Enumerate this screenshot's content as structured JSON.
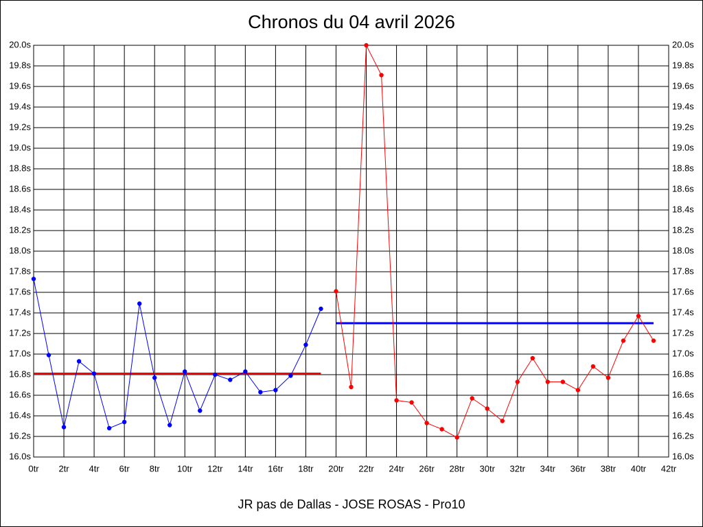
{
  "chart_data": {
    "type": "line",
    "title": "Chronos du 04 avril 2026",
    "x_label": "JR pas de Dallas - JOSE ROSAS - Pro10",
    "xlim": [
      0,
      42
    ],
    "ylim": [
      16.0,
      20.0
    ],
    "grid": true,
    "xticks": [
      {
        "value": 0,
        "label": "0tr"
      },
      {
        "value": 2,
        "label": "2tr"
      },
      {
        "value": 4,
        "label": "4tr"
      },
      {
        "value": 6,
        "label": "6tr"
      },
      {
        "value": 8,
        "label": "8tr"
      },
      {
        "value": 10,
        "label": "10tr"
      },
      {
        "value": 12,
        "label": "12tr"
      },
      {
        "value": 14,
        "label": "14tr"
      },
      {
        "value": 16,
        "label": "16tr"
      },
      {
        "value": 18,
        "label": "18tr"
      },
      {
        "value": 20,
        "label": "20tr"
      },
      {
        "value": 22,
        "label": "22tr"
      },
      {
        "value": 24,
        "label": "24tr"
      },
      {
        "value": 26,
        "label": "26tr"
      },
      {
        "value": 28,
        "label": "28tr"
      },
      {
        "value": 30,
        "label": "30tr"
      },
      {
        "value": 32,
        "label": "32tr"
      },
      {
        "value": 34,
        "label": "34tr"
      },
      {
        "value": 36,
        "label": "36tr"
      },
      {
        "value": 38,
        "label": "38tr"
      },
      {
        "value": 40,
        "label": "40tr"
      },
      {
        "value": 42,
        "label": "42tr"
      }
    ],
    "yticks": [
      {
        "value": 16.0,
        "label": "16.0s"
      },
      {
        "value": 16.2,
        "label": "16.2s"
      },
      {
        "value": 16.4,
        "label": "16.4s"
      },
      {
        "value": 16.6,
        "label": "16.6s"
      },
      {
        "value": 16.8,
        "label": "16.8s"
      },
      {
        "value": 17.0,
        "label": "17.0s"
      },
      {
        "value": 17.2,
        "label": "17.2s"
      },
      {
        "value": 17.4,
        "label": "17.4s"
      },
      {
        "value": 17.6,
        "label": "17.6s"
      },
      {
        "value": 17.8,
        "label": "17.8s"
      },
      {
        "value": 18.0,
        "label": "18.0s"
      },
      {
        "value": 18.2,
        "label": "18.2s"
      },
      {
        "value": 18.4,
        "label": "18.4s"
      },
      {
        "value": 18.6,
        "label": "18.6s"
      },
      {
        "value": 18.8,
        "label": "18.8s"
      },
      {
        "value": 19.0,
        "label": "19.0s"
      },
      {
        "value": 19.2,
        "label": "19.2s"
      },
      {
        "value": 19.4,
        "label": "19.4s"
      },
      {
        "value": 19.6,
        "label": "19.6s"
      },
      {
        "value": 19.8,
        "label": "19.8s"
      },
      {
        "value": 20.0,
        "label": "20.0s"
      }
    ],
    "series": [
      {
        "color": "#0000ff",
        "x": [
          0,
          1,
          2,
          3,
          4,
          5,
          6,
          7,
          8,
          9,
          10,
          11,
          12,
          13,
          14,
          15,
          16,
          17,
          18,
          19
        ],
        "values": [
          17.73,
          16.99,
          16.29,
          16.93,
          16.81,
          16.28,
          16.34,
          17.49,
          16.77,
          16.31,
          16.83,
          16.45,
          16.8,
          16.75,
          16.83,
          16.63,
          16.65,
          16.79,
          17.09,
          17.44
        ]
      },
      {
        "color": "#ff0000",
        "x": [
          20,
          21,
          22,
          23,
          24,
          25,
          26,
          27,
          28,
          29,
          30,
          31,
          32,
          33,
          34,
          35,
          36,
          37,
          38,
          39,
          40,
          41
        ],
        "values": [
          17.61,
          16.68,
          20.0,
          19.71,
          16.55,
          16.53,
          16.33,
          16.27,
          16.19,
          16.57,
          16.47,
          16.35,
          16.73,
          16.96,
          16.73,
          16.73,
          16.65,
          16.88,
          16.77,
          17.13,
          17.37,
          17.13
        ]
      }
    ],
    "reference_lines": [
      {
        "value": 16.81,
        "color": "#ff0000",
        "x": [
          0,
          19
        ]
      },
      {
        "value": 17.3,
        "color": "#0000ff",
        "x": [
          20,
          41
        ]
      }
    ]
  }
}
